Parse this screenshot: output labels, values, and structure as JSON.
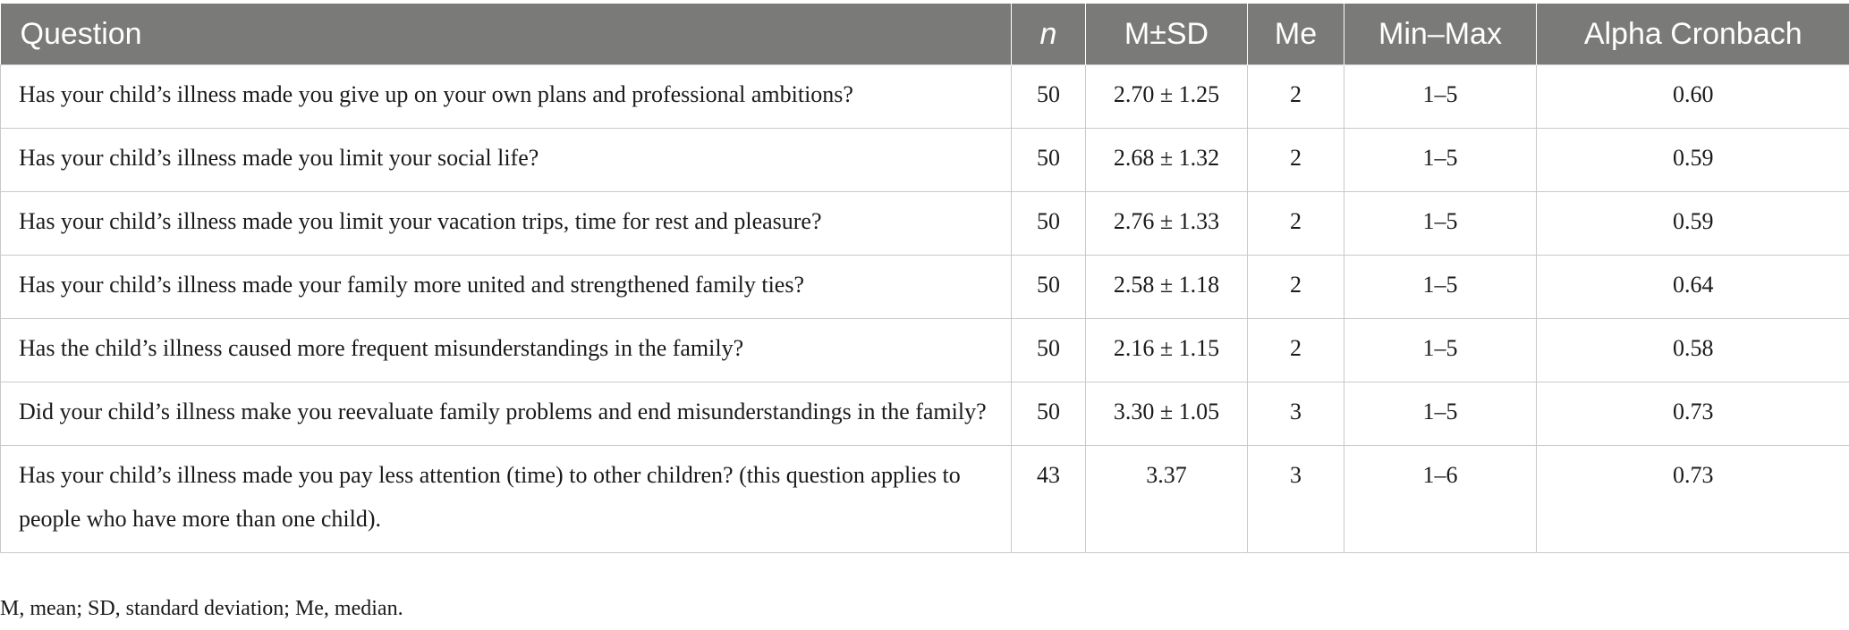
{
  "table": {
    "headers": {
      "question": "Question",
      "n": "n",
      "msd": "M±SD",
      "me": "Me",
      "minmax": "Min–Max",
      "alpha": "Alpha Cronbach"
    },
    "rows": [
      {
        "question": "Has your child’s illness made you give up on your own plans and professional ambitions?",
        "n": "50",
        "msd": "2.70 ± 1.25",
        "me": "2",
        "minmax": "1–5",
        "alpha": "0.60"
      },
      {
        "question": "Has your child’s illness made you limit your social life?",
        "n": "50",
        "msd": "2.68 ± 1.32",
        "me": "2",
        "minmax": "1–5",
        "alpha": "0.59"
      },
      {
        "question": "Has your child’s illness made you limit your vacation trips, time for rest and pleasure?",
        "n": "50",
        "msd": "2.76 ± 1.33",
        "me": "2",
        "minmax": "1–5",
        "alpha": "0.59"
      },
      {
        "question": "Has your child’s illness made your family more united and strengthened family ties?",
        "n": "50",
        "msd": "2.58 ± 1.18",
        "me": "2",
        "minmax": "1–5",
        "alpha": "0.64"
      },
      {
        "question": "Has the child’s illness caused more frequent misunderstandings in the family?",
        "n": "50",
        "msd": "2.16 ± 1.15",
        "me": "2",
        "minmax": "1–5",
        "alpha": "0.58"
      },
      {
        "question": "Did your child’s illness make you reevaluate family problems and end misunderstandings in the family?",
        "n": "50",
        "msd": "3.30 ± 1.05",
        "me": "3",
        "minmax": "1–5",
        "alpha": "0.73"
      },
      {
        "question": "Has your child’s illness made you pay less attention (time) to other children? (this question applies to people who have more than one child).",
        "n": "43",
        "msd": "3.37",
        "me": "3",
        "minmax": "1–6",
        "alpha": "0.73"
      }
    ]
  },
  "footnote": "M, mean; SD, standard deviation; Me, median.",
  "colors": {
    "header_bg": "#7a7a79",
    "header_text": "#ffffff",
    "grid": "#c9c9c9"
  }
}
